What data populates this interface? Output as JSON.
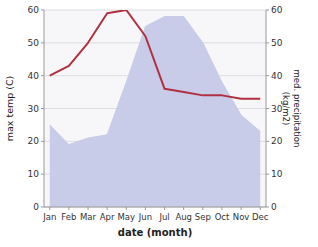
{
  "chart_data": {
    "type": "line",
    "categories": [
      "Jan",
      "Feb",
      "Mar",
      "Apr",
      "May",
      "Jun",
      "Jul",
      "Aug",
      "Sep",
      "Oct",
      "Nov",
      "Dec"
    ],
    "series": [
      {
        "type": "area",
        "axis": "y2",
        "color": "#c8cce8",
        "values": [
          25,
          19,
          21,
          22,
          38,
          55,
          58,
          58,
          50,
          38,
          28,
          23
        ]
      },
      {
        "type": "line",
        "color": "#b03040",
        "values": [
          40,
          43,
          50,
          59,
          60,
          52,
          36,
          35,
          34,
          34,
          33,
          33
        ]
      }
    ],
    "x_label": "date (month)",
    "y_label": "max temp (C)",
    "y2_label": "med. precipitation\n(kg/m2)",
    "ylim": [
      0,
      60
    ],
    "yticks": [
      0,
      10,
      20,
      30,
      40,
      50,
      60
    ],
    "y2lim": [
      0,
      60
    ],
    "y2ticks": [
      0,
      10,
      20,
      30,
      40,
      50,
      60
    ],
    "grid": true
  }
}
